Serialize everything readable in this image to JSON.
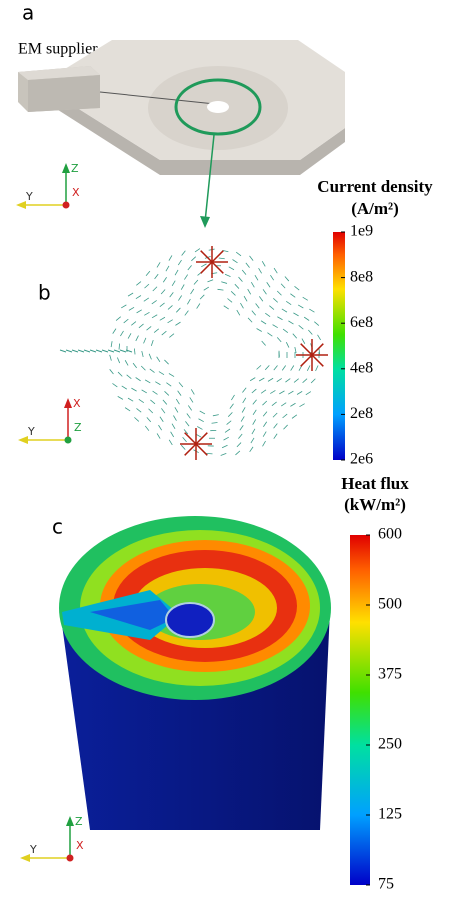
{
  "panels": [
    {
      "label": "a",
      "annotation": "EM supplier",
      "axes": [
        "Z",
        "X",
        "Y"
      ]
    },
    {
      "label": "b",
      "axes": [
        "X",
        "Z",
        "Y"
      ]
    },
    {
      "label": "c",
      "axes": [
        "Z",
        "X",
        "Y"
      ]
    }
  ],
  "colorbars": [
    {
      "title": "Current density",
      "unit": "(A/m²)",
      "ticks": [
        "1e9",
        "8e8",
        "6e8",
        "4e8",
        "2e8",
        "2e6"
      ]
    },
    {
      "title": "Heat flux",
      "unit": "(kW/m²)",
      "ticks": [
        "600",
        "500",
        "375",
        "250",
        "125",
        "75"
      ]
    }
  ]
}
